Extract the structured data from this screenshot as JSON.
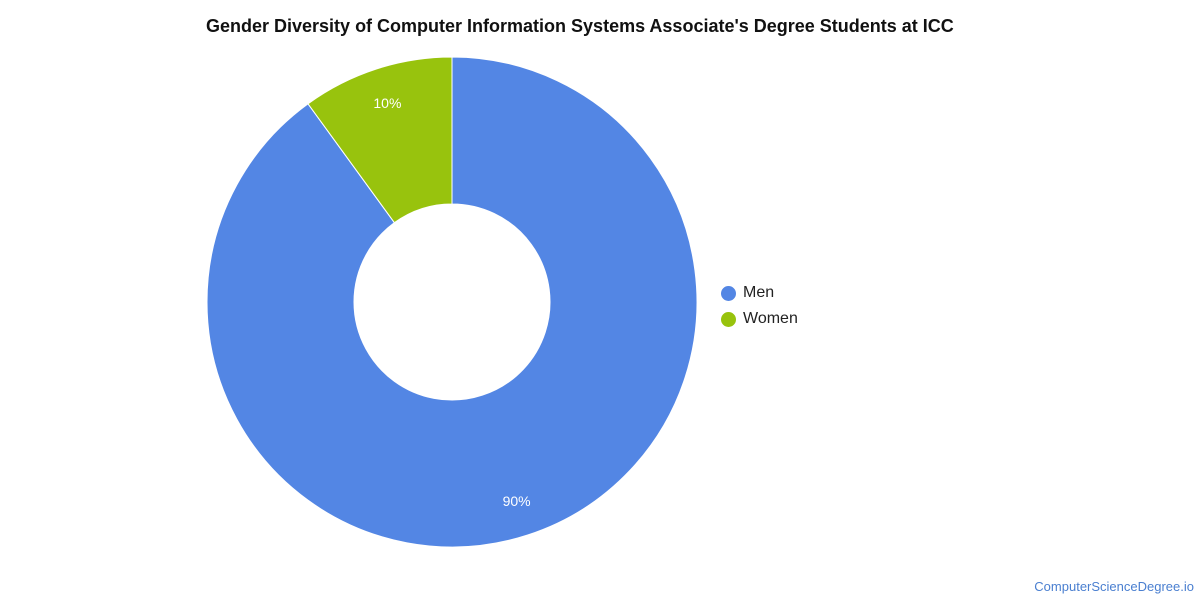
{
  "chart_data": {
    "type": "pie",
    "donut": true,
    "title": "Gender Diversity of Computer Information Systems Associate's Degree Students at ICC",
    "categories": [
      "Men",
      "Women"
    ],
    "values": [
      90,
      10
    ],
    "labels": [
      "90%",
      "10%"
    ],
    "colors": [
      "#5386e4",
      "#98c30d"
    ],
    "legend_position": "right"
  },
  "watermark": "ComputerScienceDegree.io",
  "colors": {
    "background": "#ffffff",
    "title": "#111111",
    "slice_label": "#ffffff",
    "watermark": "#4a7fd0"
  }
}
